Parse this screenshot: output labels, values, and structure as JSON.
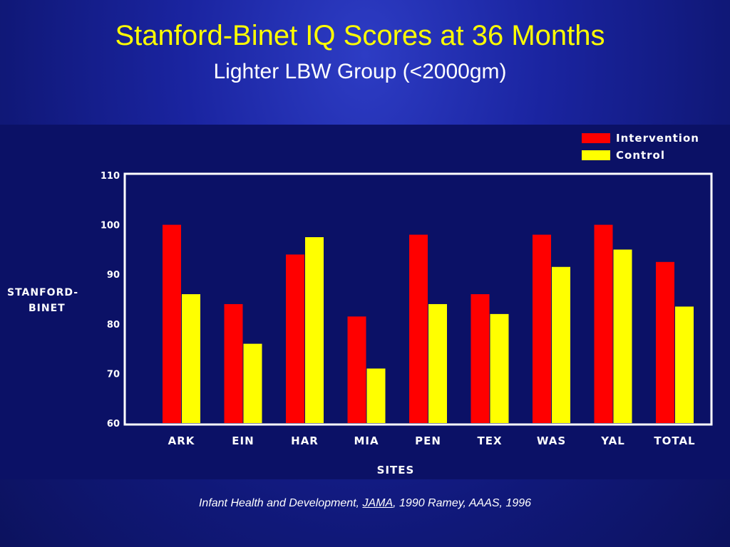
{
  "slide": {
    "title": "Stanford-Binet IQ Scores at 36 Months",
    "subtitle": "Lighter LBW Group (<2000gm)",
    "citation": {
      "part1": "Infant Health and Development, ",
      "journal": "JAMA",
      "part2": ", 1990   Ramey, AAAS, 1996"
    }
  },
  "colors": {
    "intervention": "#ff0000",
    "control": "#ffff00",
    "title": "#ffff00",
    "axis": "#ffffff"
  },
  "chart_data": {
    "type": "bar",
    "ylabel_line1": "STANFORD-",
    "ylabel_line2": "BINET",
    "xlabel": "SITES",
    "ylim": [
      60,
      110
    ],
    "yticks": [
      110,
      100,
      90,
      80,
      70,
      60
    ],
    "categories": [
      "ARK",
      "EIN",
      "HAR",
      "MIA",
      "PEN",
      "TEX",
      "WAS",
      "YAL",
      "TOTAL"
    ],
    "series": [
      {
        "name": "Intervention",
        "values": [
          100,
          84,
          94,
          81.5,
          98,
          86,
          98,
          100,
          92.5
        ]
      },
      {
        "name": "Control",
        "values": [
          86,
          76,
          97.5,
          71,
          84,
          82,
          91.5,
          95,
          83.5
        ]
      }
    ],
    "legend_position": "top-right",
    "grid": false
  }
}
